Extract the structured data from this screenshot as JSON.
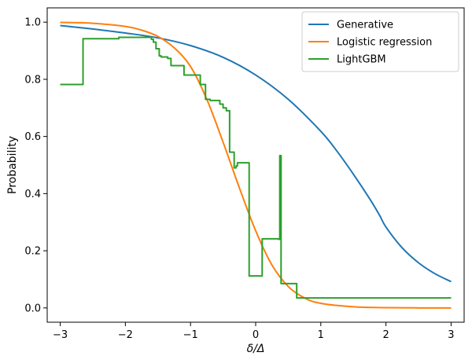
{
  "chart_data": {
    "type": "line",
    "xlabel": "δ/Δ",
    "ylabel": "Probability",
    "xlim": [
      -3.2,
      3.2
    ],
    "ylim": [
      -0.05,
      1.05
    ],
    "xticks": [
      -3,
      -2,
      -1,
      0,
      1,
      2,
      3
    ],
    "xtick_labels": [
      "−3",
      "−2",
      "−1",
      "0",
      "1",
      "2",
      "3"
    ],
    "yticks": [
      0.0,
      0.2,
      0.4,
      0.6,
      0.8,
      1.0
    ],
    "ytick_labels": [
      "0.0",
      "0.2",
      "0.4",
      "0.6",
      "0.8",
      "1.0"
    ],
    "grid": false,
    "legend_position": "top-right",
    "series": [
      {
        "name": "Generative",
        "color": "#1f77b4",
        "style": "smooth",
        "x": [
          -3.0,
          -2.5,
          -2.0,
          -1.5,
          -1.0,
          -0.5,
          0.0,
          0.5,
          1.0,
          1.25,
          1.5,
          1.75,
          1.9,
          2.0,
          2.25,
          2.5,
          2.75,
          3.0
        ],
        "y": [
          0.988,
          0.976,
          0.962,
          0.945,
          0.918,
          0.877,
          0.815,
          0.73,
          0.618,
          0.548,
          0.468,
          0.382,
          0.325,
          0.283,
          0.21,
          0.158,
          0.12,
          0.092
        ]
      },
      {
        "name": "Logistic regression",
        "color": "#ff7f0e",
        "style": "smooth",
        "x": [
          -3.0,
          -2.5,
          -2.0,
          -1.75,
          -1.5,
          -1.25,
          -1.0,
          -0.75,
          -0.5,
          -0.25,
          0.0,
          0.25,
          0.5,
          0.75,
          1.0,
          1.5,
          2.0,
          2.5,
          3.0
        ],
        "y": [
          0.999,
          0.996,
          0.985,
          0.972,
          0.95,
          0.91,
          0.845,
          0.73,
          0.58,
          0.42,
          0.27,
          0.15,
          0.075,
          0.035,
          0.016,
          0.004,
          0.001,
          0.0,
          0.0
        ]
      },
      {
        "name": "LightGBM",
        "color": "#2ca02c",
        "style": "step",
        "x": [
          -3.0,
          -2.65,
          -2.65,
          -2.1,
          -2.1,
          -1.6,
          -1.6,
          -1.57,
          -1.57,
          -1.53,
          -1.53,
          -1.48,
          -1.48,
          -1.45,
          -1.45,
          -1.35,
          -1.35,
          -1.3,
          -1.3,
          -1.1,
          -1.1,
          -0.85,
          -0.85,
          -0.77,
          -0.77,
          -0.7,
          -0.7,
          -0.55,
          -0.55,
          -0.5,
          -0.5,
          -0.45,
          -0.45,
          -0.4,
          -0.4,
          -0.33,
          -0.33,
          -0.3,
          -0.3,
          -0.28,
          -0.28,
          -0.25,
          -0.25,
          -0.1,
          -0.1,
          -0.08,
          -0.08,
          0.1,
          0.1,
          0.35,
          0.35,
          0.37,
          0.37,
          0.39,
          0.39,
          0.63,
          0.63,
          3.0
        ],
        "y": [
          0.782,
          0.782,
          0.942,
          0.942,
          0.947,
          0.947,
          0.94,
          0.94,
          0.93,
          0.93,
          0.907,
          0.907,
          0.882,
          0.882,
          0.878,
          0.878,
          0.873,
          0.873,
          0.848,
          0.848,
          0.815,
          0.815,
          0.782,
          0.782,
          0.73,
          0.73,
          0.726,
          0.726,
          0.713,
          0.713,
          0.7,
          0.7,
          0.69,
          0.69,
          0.545,
          0.545,
          0.49,
          0.49,
          0.497,
          0.497,
          0.508,
          0.508,
          0.508,
          0.508,
          0.112,
          0.112,
          0.112,
          0.112,
          0.242,
          0.242,
          0.24,
          0.24,
          0.533,
          0.533,
          0.085,
          0.085,
          0.035,
          0.035
        ]
      }
    ]
  }
}
